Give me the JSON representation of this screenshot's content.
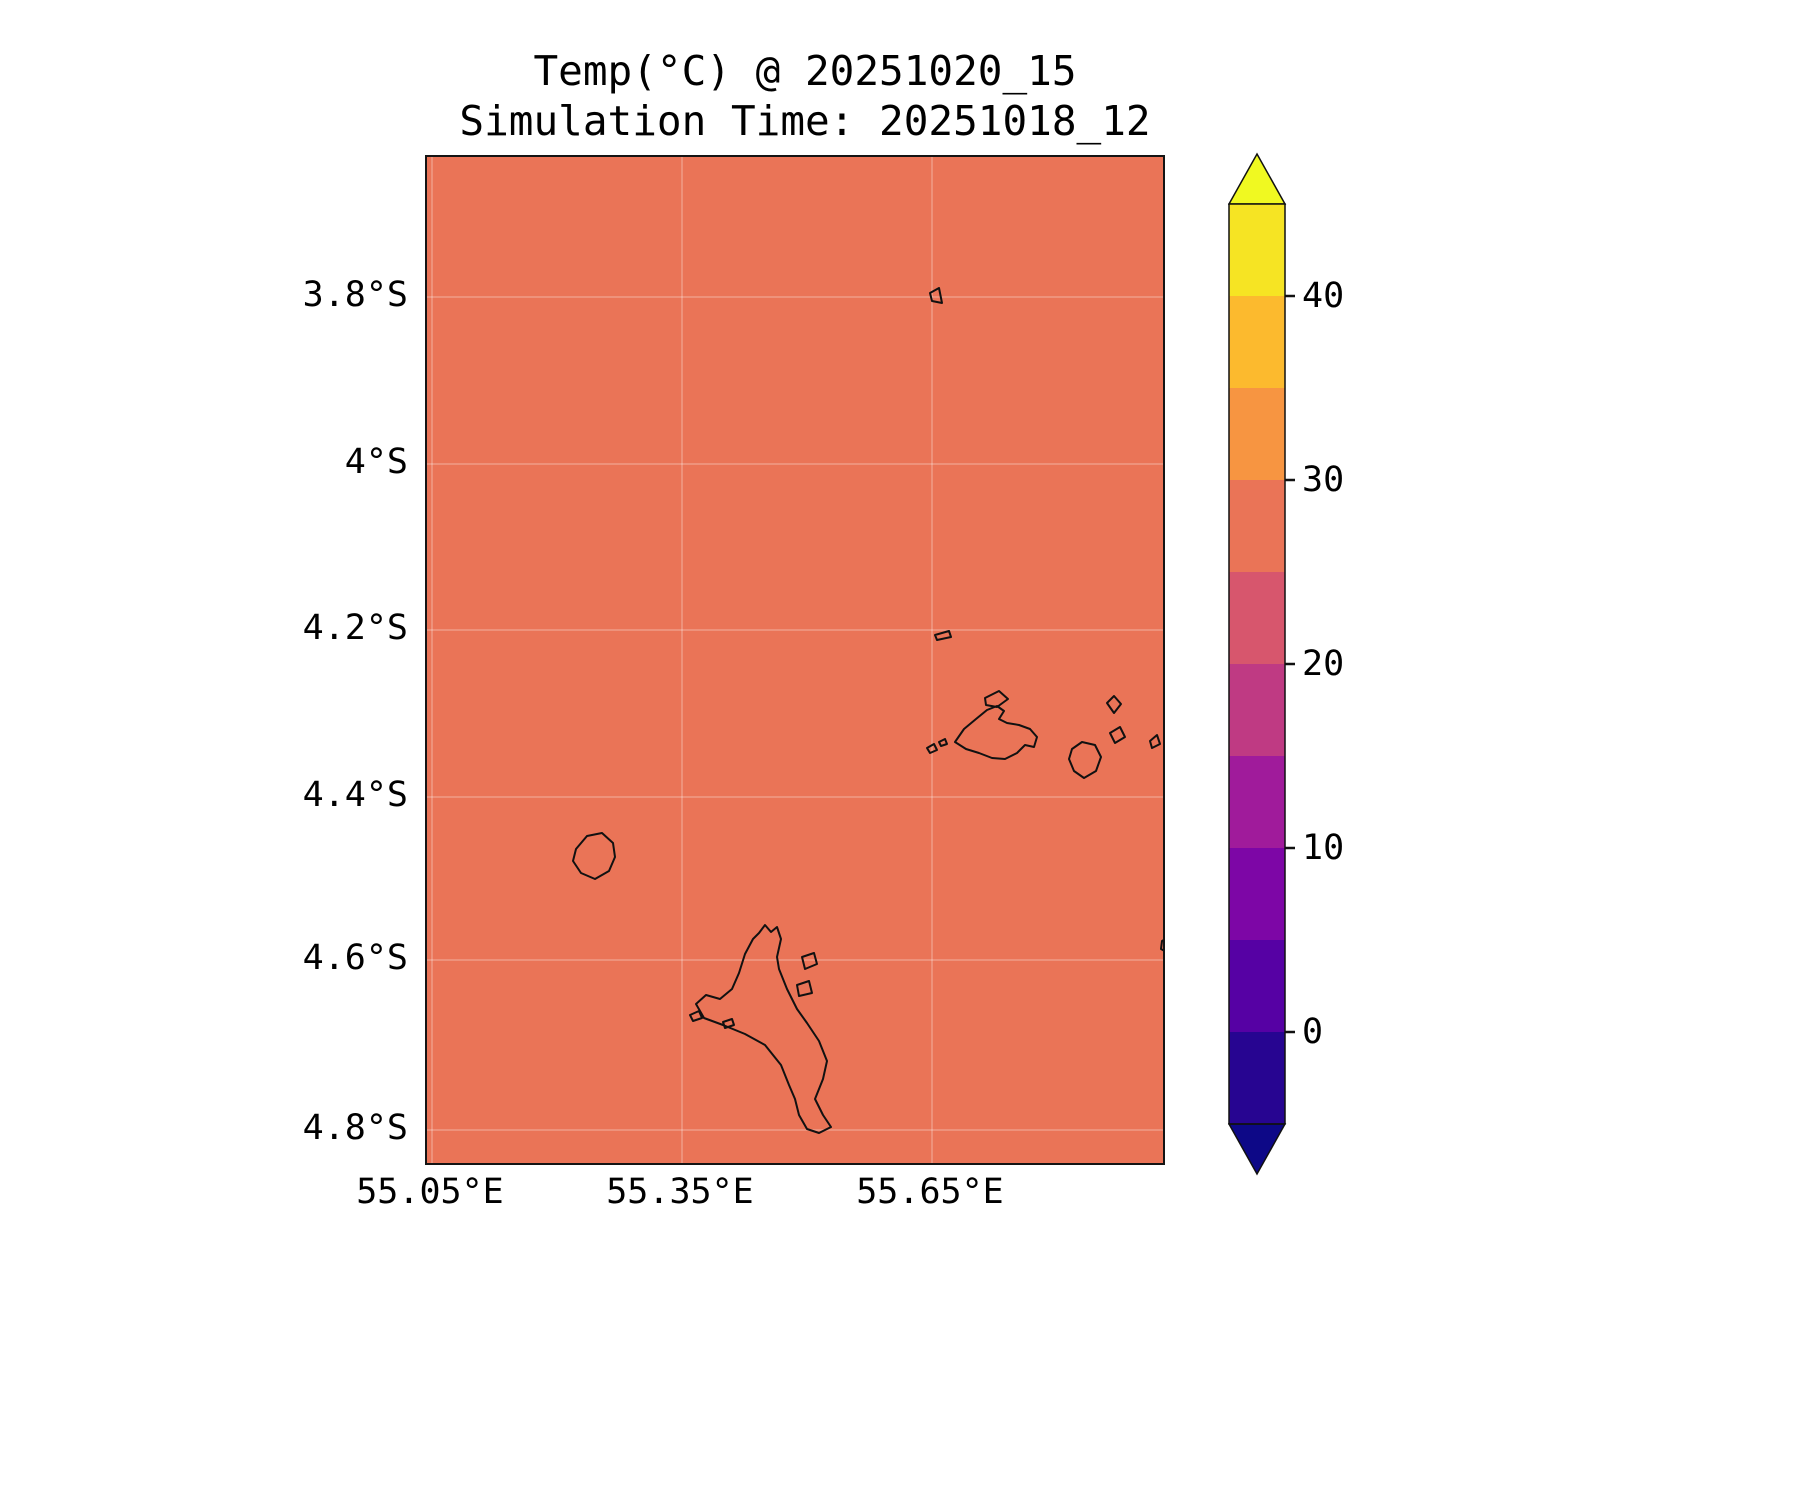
{
  "title": {
    "line1": "Temp(°C) @ 20251020_15",
    "line2": "Simulation Time: 20251018_12"
  },
  "chart_data": {
    "type": "heatmap",
    "title": "Temp(°C) @ 20251020_15",
    "subtitle": "Simulation Time: 20251018_12",
    "variable": "Temp(°C)",
    "valid_time": "20251020_15",
    "simulation_time": "20251018_12",
    "x_tick_labels": [
      "55.05°E",
      "55.35°E",
      "55.65°E"
    ],
    "y_tick_labels": [
      "3.8°S",
      "4°S",
      "4.2°S",
      "4.4°S",
      "4.6°S",
      "4.8°S"
    ],
    "x_range_deg_e": [
      55.04,
      55.93
    ],
    "y_range_deg_s": [
      3.63,
      4.85
    ],
    "grid": true,
    "field_description": "uniform temperature field over ocean and islands, single color band 25-30 °C (approx. 27 °C)",
    "uniform_value_band_c": [
      25,
      30
    ],
    "fill_color": "#ea7457",
    "coastlines": "Seychelles inner islands (Mahé, Praslin, La Digue, Silhouette and islets) drawn as black outlines",
    "colorbar": {
      "orientation": "vertical",
      "position": "right",
      "tick_labels": [
        "40",
        "30",
        "20",
        "10",
        "0"
      ],
      "levels": [
        -5,
        0,
        5,
        10,
        15,
        20,
        25,
        30,
        35,
        40,
        45
      ],
      "band_colors_top_to_bottom": [
        "#f6e423",
        "#fcba2e",
        "#f79541",
        "#ea7457",
        "#d7566d",
        "#bf3a83",
        "#a01b9b",
        "#7d06a6",
        "#5601a4",
        "#270591"
      ],
      "over_color": "#f0f921",
      "under_color": "#0d0887",
      "extend": "both"
    }
  }
}
